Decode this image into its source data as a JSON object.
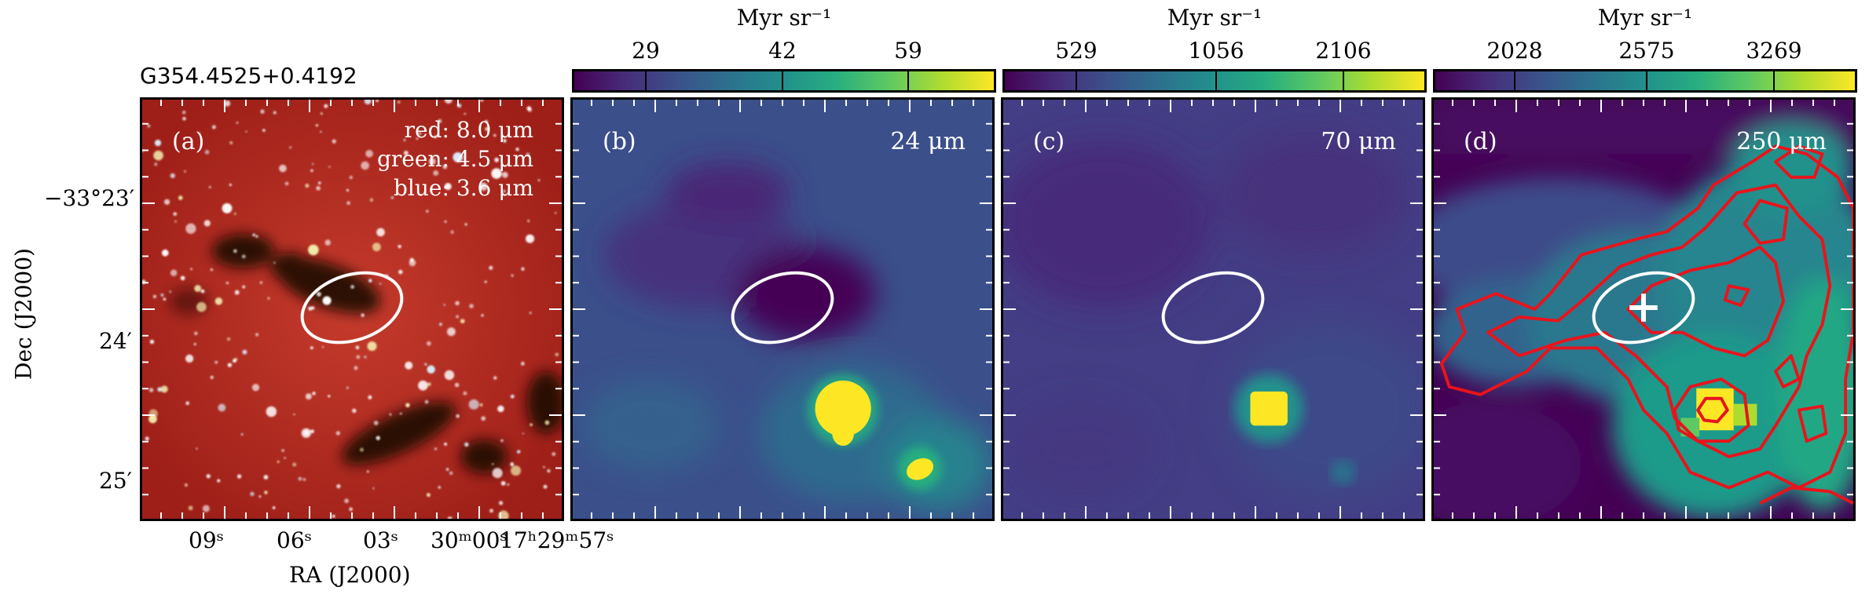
{
  "figure": {
    "source_name": "G354.4525+0.4192",
    "panels": [
      {
        "id": "a",
        "label": "(a)",
        "bands": [
          "red: 8.0 μm",
          "green: 4.5 μm",
          "blue: 3.6 μm"
        ]
      },
      {
        "id": "b",
        "label": "(b)",
        "wavelength": "24 μm",
        "colorbar": {
          "title": "Myr sr⁻¹",
          "ticks": [
            "29",
            "42",
            "59"
          ]
        }
      },
      {
        "id": "c",
        "label": "(c)",
        "wavelength": "70 μm",
        "colorbar": {
          "title": "Myr sr⁻¹",
          "ticks": [
            "529",
            "1056",
            "2106"
          ]
        }
      },
      {
        "id": "d",
        "label": "(d)",
        "wavelength": "250 μm",
        "colorbar": {
          "title": "Myr sr⁻¹",
          "ticks": [
            "2028",
            "2575",
            "3269"
          ]
        }
      }
    ],
    "axes": {
      "xlabel": "RA (J2000)",
      "ylabel": "Dec (J2000)",
      "x_ticks": [
        "09ˢ",
        "06ˢ",
        "03ˢ",
        "30ᵐ00ˢ",
        "17ʰ29ᵐ57ˢ"
      ],
      "y_ticks": [
        "−33°23′",
        "24′",
        "25′"
      ]
    },
    "colors": {
      "ellipse": "#ffffff",
      "contour": "#e8141c",
      "colormap_low": "#440154",
      "colormap_high": "#fde725",
      "rgb_background": "#b5291f"
    },
    "markers": {
      "cross": "plus-marker"
    }
  }
}
